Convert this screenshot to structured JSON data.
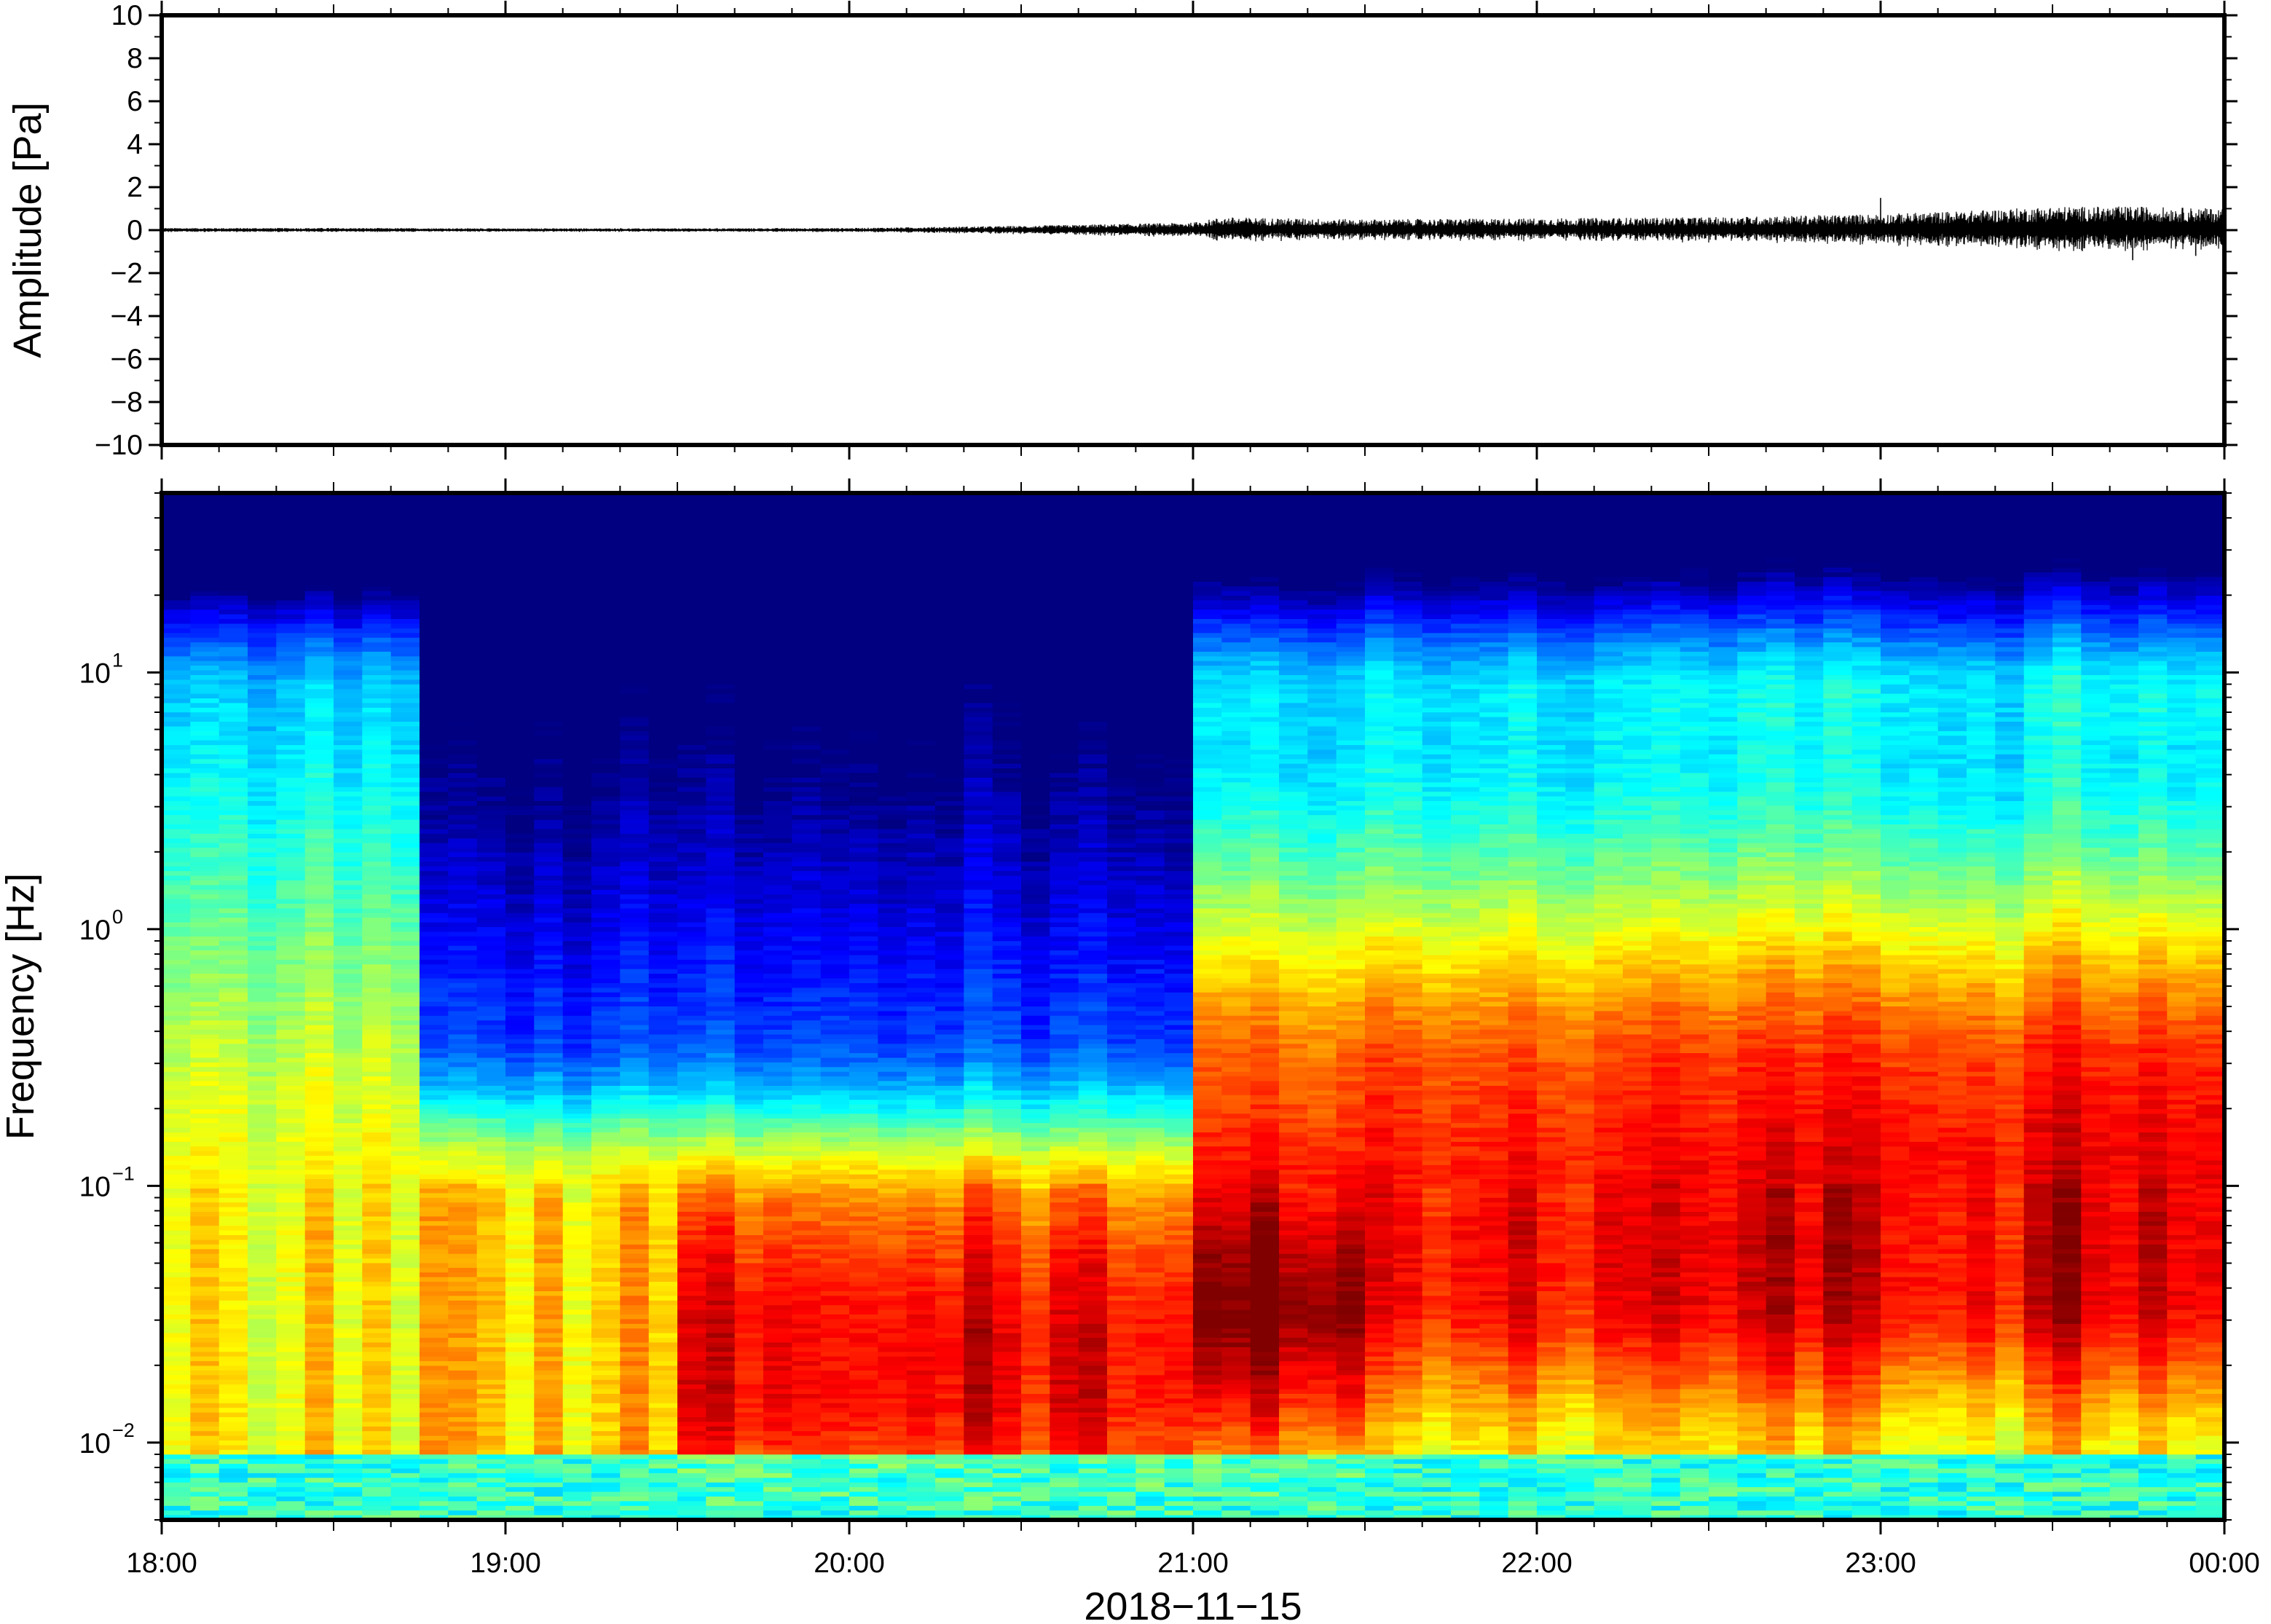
{
  "chart_data": [
    {
      "type": "line",
      "ylabel": "Amplitude [Pa]",
      "ylim": [
        -10,
        10
      ],
      "yticks": [
        10,
        8,
        6,
        4,
        2,
        0,
        -2,
        -4,
        -6,
        -8,
        -10
      ],
      "ytick_labels": [
        "10",
        "8",
        "6",
        "4",
        "2",
        "0",
        "−2",
        "−4",
        "−6",
        "−8",
        "−10"
      ],
      "x_range": [
        "2018-11-15T18:00",
        "2018-11-16T00:00"
      ],
      "series": [
        {
          "x": [
            "18:00",
            "18:30",
            "19:00",
            "19:30",
            "20:00",
            "20:30",
            "20:50",
            "21:00",
            "21:05",
            "21:30",
            "22:00",
            "22:30",
            "23:00",
            "23:15",
            "23:30",
            "23:45",
            "00:00"
          ],
          "envelope": [
            0.1,
            0.1,
            0.08,
            0.08,
            0.1,
            0.2,
            0.3,
            0.35,
            0.6,
            0.5,
            0.55,
            0.6,
            0.75,
            0.9,
            1.1,
            1.1,
            1.0
          ],
          "peak_points": [
            {
              "x": "23:00",
              "y": 1.5
            },
            {
              "x": "23:44",
              "y": -1.4
            },
            {
              "x": "23:55",
              "y": -1.2
            }
          ]
        }
      ],
      "grid": false
    },
    {
      "type": "heatmap",
      "xlabel": "2018−11−15",
      "ylabel": "Frequency [Hz]",
      "y_scale": "log",
      "ylim": [
        0.005,
        50
      ],
      "yticks": [
        0.01,
        0.1,
        1,
        10
      ],
      "ytick_labels": [
        {
          "base": "10",
          "exp": "−2"
        },
        {
          "base": "10",
          "exp": "−1"
        },
        {
          "base": "10",
          "exp": "0"
        },
        {
          "base": "10",
          "exp": "1"
        }
      ],
      "x_range": [
        "2018-11-15T18:00",
        "2018-11-16T00:00"
      ],
      "xticks": [
        "18:00",
        "19:00",
        "20:00",
        "21:00",
        "22:00",
        "23:00",
        "00:00"
      ],
      "colormap": "jet",
      "grid": false
    }
  ],
  "colors": {
    "trace": "#000000",
    "frame": "#000000",
    "colormap_low": "#000080",
    "colormap_high": "#e63c3c"
  }
}
